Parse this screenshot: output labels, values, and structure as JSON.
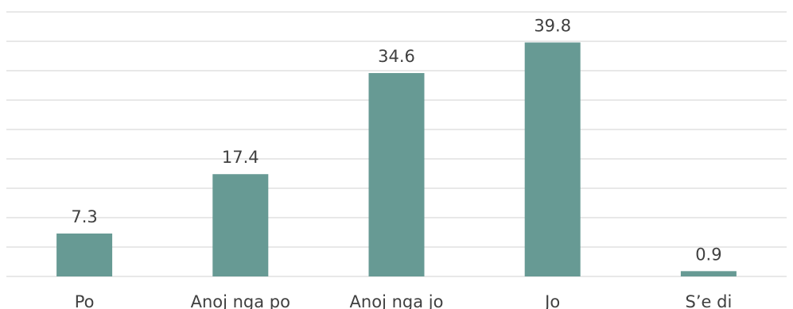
{
  "chart_data": {
    "type": "bar",
    "categories": [
      "Po",
      "Anoj nga po",
      "Anoj nga jo",
      "Jo",
      "S’e di"
    ],
    "values": [
      7.3,
      17.4,
      34.6,
      39.8,
      0.9
    ],
    "title": "",
    "xlabel": "",
    "ylabel": "",
    "ylim": [
      0,
      45
    ],
    "grid": true,
    "legend": "none",
    "colors": {
      "bar": "#679a94",
      "grid": "#d9d9d9",
      "text": "#404040"
    }
  }
}
